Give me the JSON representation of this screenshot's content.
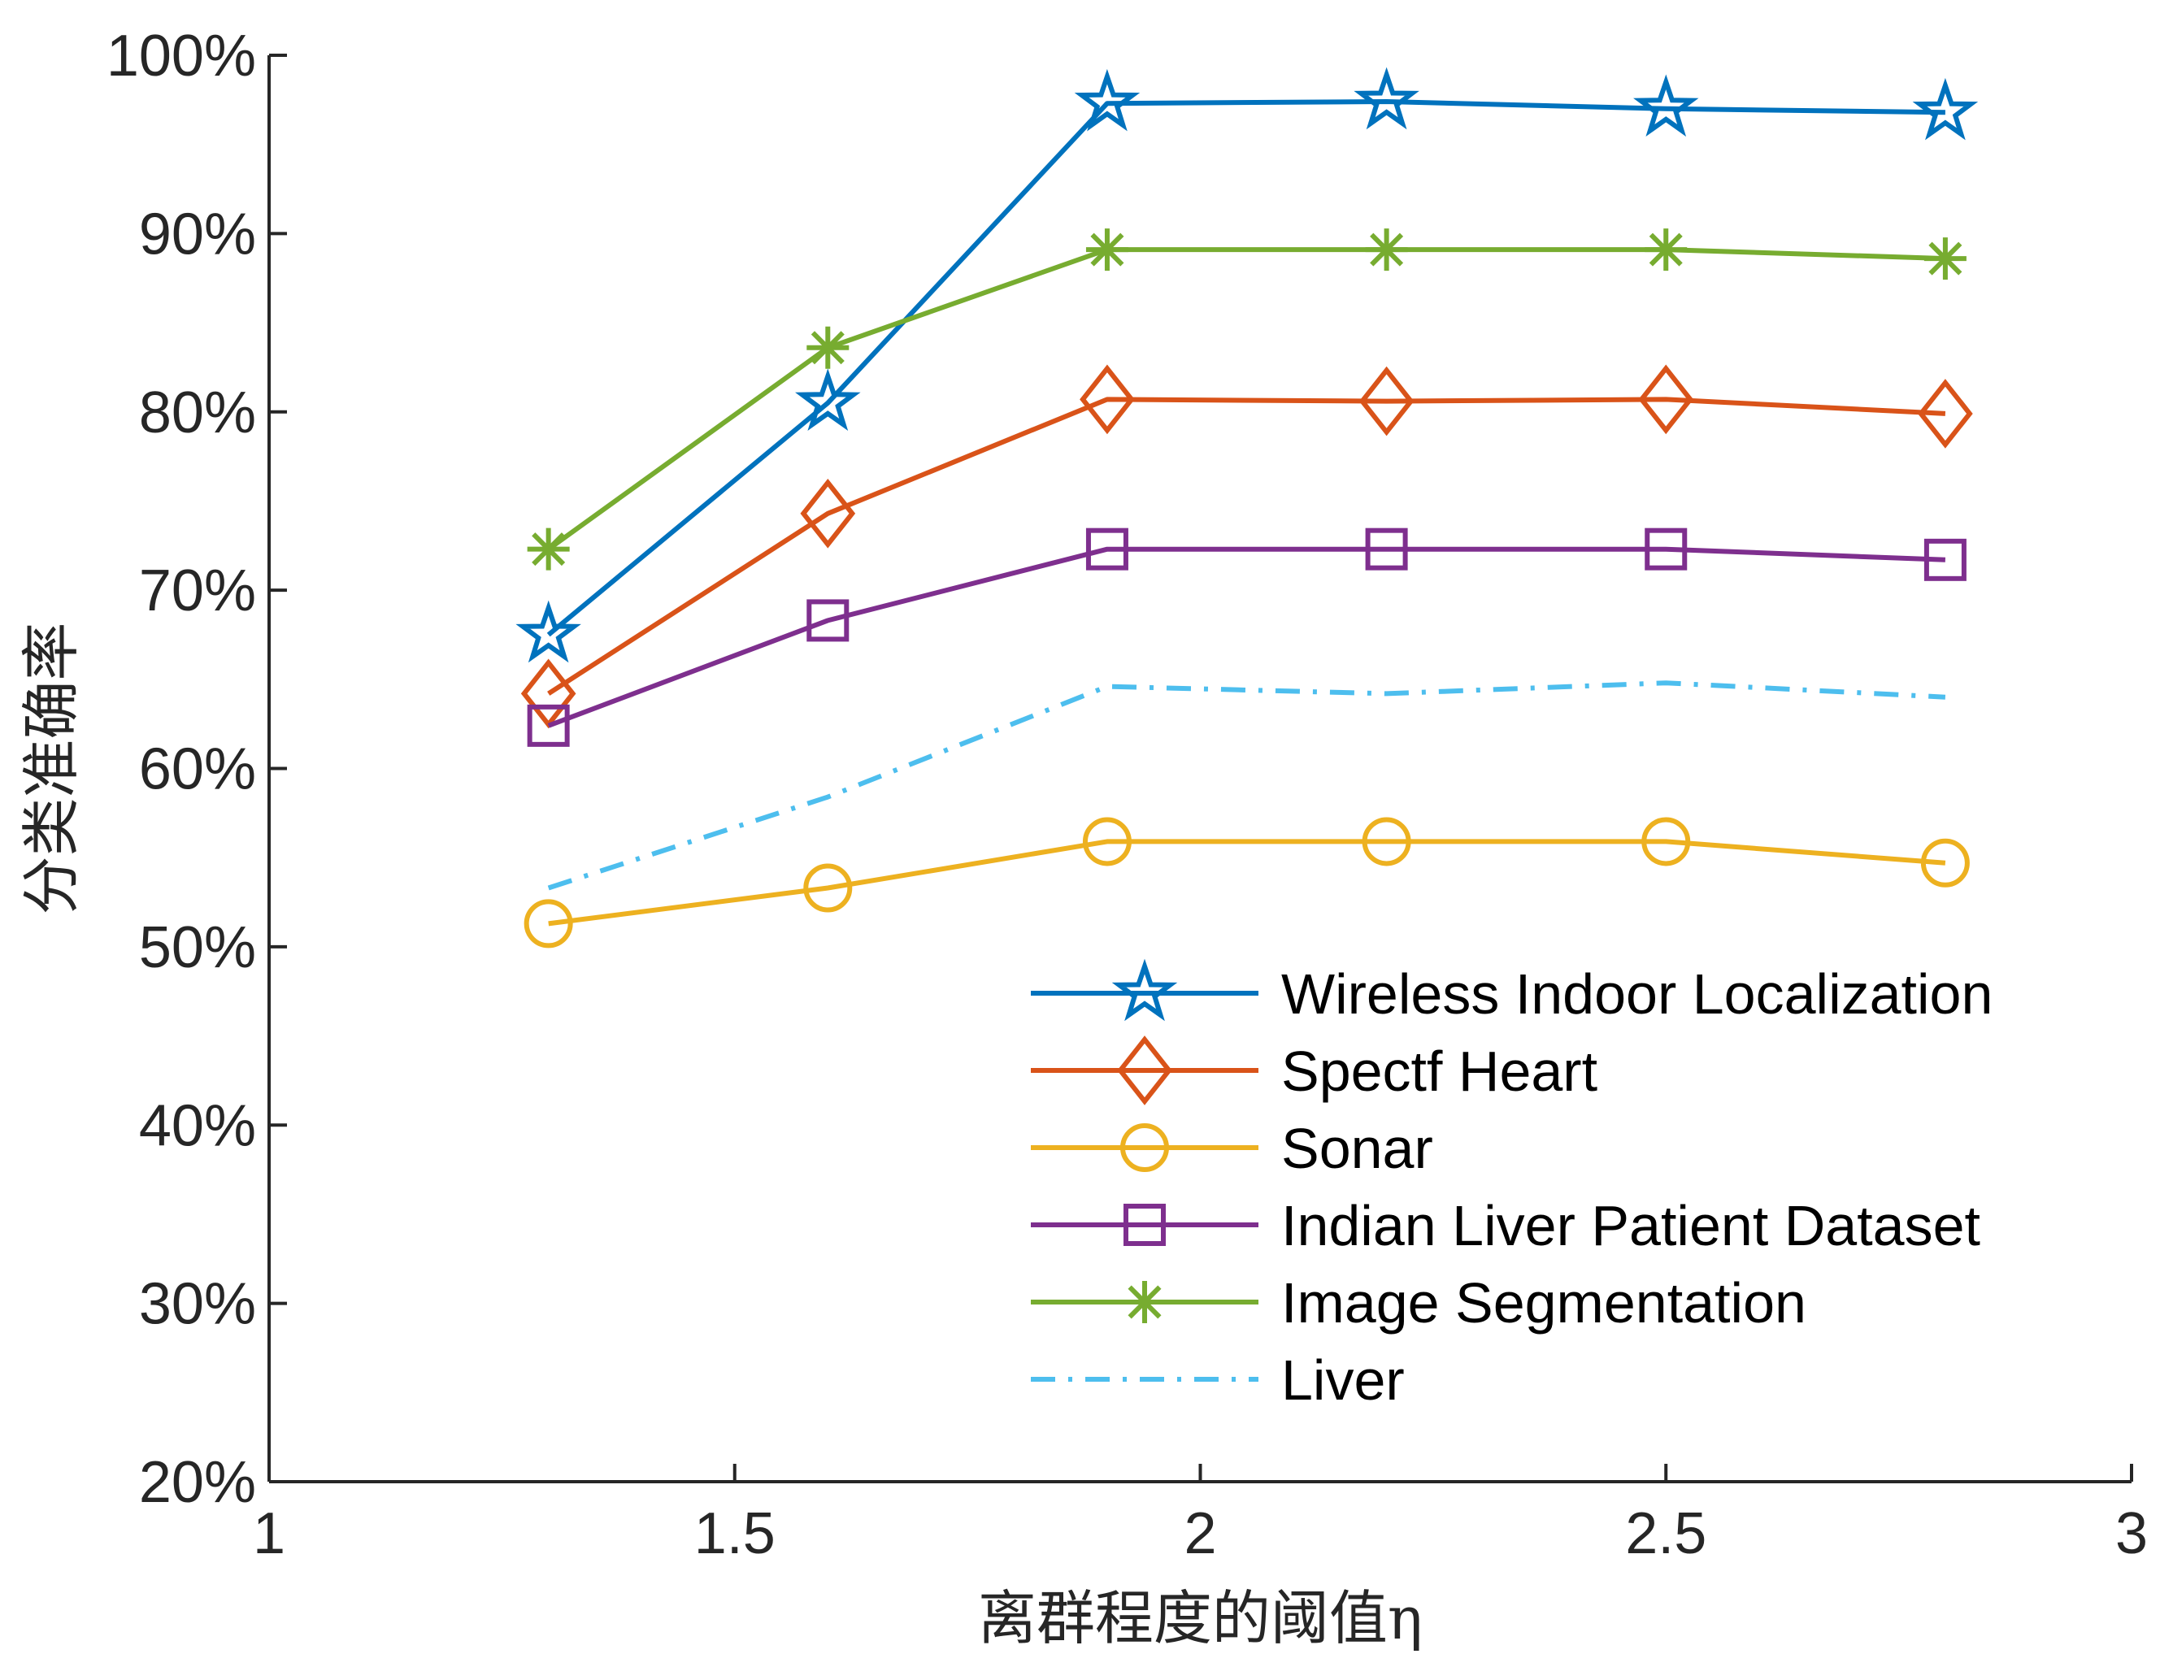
{
  "chart_data": {
    "type": "line",
    "title": "",
    "xlabel": "离群程度的阈值η",
    "ylabel": "分类准确率",
    "xlim": [
      1,
      3
    ],
    "ylim": [
      20,
      100
    ],
    "x_ticks": [
      1,
      1.5,
      2,
      2.5,
      3
    ],
    "x_tick_labels": [
      "1",
      "1.5",
      "2",
      "2.5",
      "3"
    ],
    "y_ticks": [
      20,
      30,
      40,
      50,
      60,
      70,
      80,
      90,
      100
    ],
    "y_tick_labels": [
      "20%",
      "30%",
      "40%",
      "50%",
      "60%",
      "70%",
      "80%",
      "90%",
      "100%"
    ],
    "grid": false,
    "legend_position": "lower-right",
    "x": [
      1.3,
      1.6,
      1.9,
      2.2,
      2.5,
      2.8
    ],
    "series": [
      {
        "name": "Wireless Indoor Localization",
        "color": "#0072BD",
        "marker": "star",
        "dash": "solid",
        "values": [
          67.5,
          80.5,
          97.3,
          97.4,
          97.0,
          96.8
        ]
      },
      {
        "name": "Spectf Heart",
        "color": "#D95319",
        "marker": "diamond",
        "dash": "solid",
        "values": [
          64.2,
          74.3,
          80.7,
          80.6,
          80.7,
          79.9
        ]
      },
      {
        "name": "Sonar",
        "color": "#EDB120",
        "marker": "circle",
        "dash": "solid",
        "values": [
          51.3,
          53.3,
          55.9,
          55.9,
          55.9,
          54.7
        ]
      },
      {
        "name": "Indian Liver Patient Dataset",
        "color": "#7E2F8E",
        "marker": "square",
        "dash": "solid",
        "values": [
          62.4,
          68.3,
          72.3,
          72.3,
          72.3,
          71.7
        ]
      },
      {
        "name": "Image Segmentation",
        "color": "#77AC30",
        "marker": "asterisk",
        "dash": "solid",
        "values": [
          72.3,
          83.6,
          89.1,
          89.1,
          89.1,
          88.6
        ]
      },
      {
        "name": "Liver",
        "color": "#4DBEEE",
        "marker": "none",
        "dash": "dashdot",
        "values": [
          53.3,
          58.4,
          64.6,
          64.2,
          64.8,
          64.0
        ]
      }
    ]
  }
}
